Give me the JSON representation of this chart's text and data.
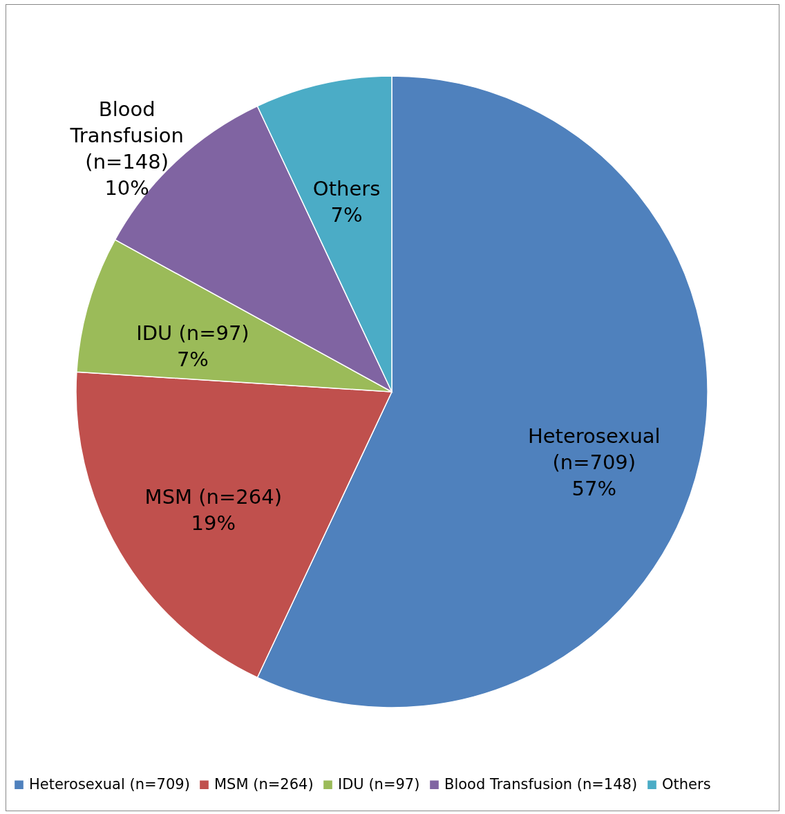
{
  "chart_data": {
    "type": "pie",
    "categories": [
      "Heterosexual (n=709)",
      "MSM (n=264)",
      "IDU (n=97)",
      "Blood Transfusion (n=148)",
      "Others"
    ],
    "values": [
      57,
      19,
      7,
      10,
      7
    ],
    "colors": [
      "#4f81bd",
      "#c0504d",
      "#9bbb59",
      "#8064a2",
      "#4bacc6"
    ],
    "value_labels": [
      "57%",
      "19%",
      "7%",
      "10%",
      "7%"
    ],
    "legend": "bottom"
  }
}
